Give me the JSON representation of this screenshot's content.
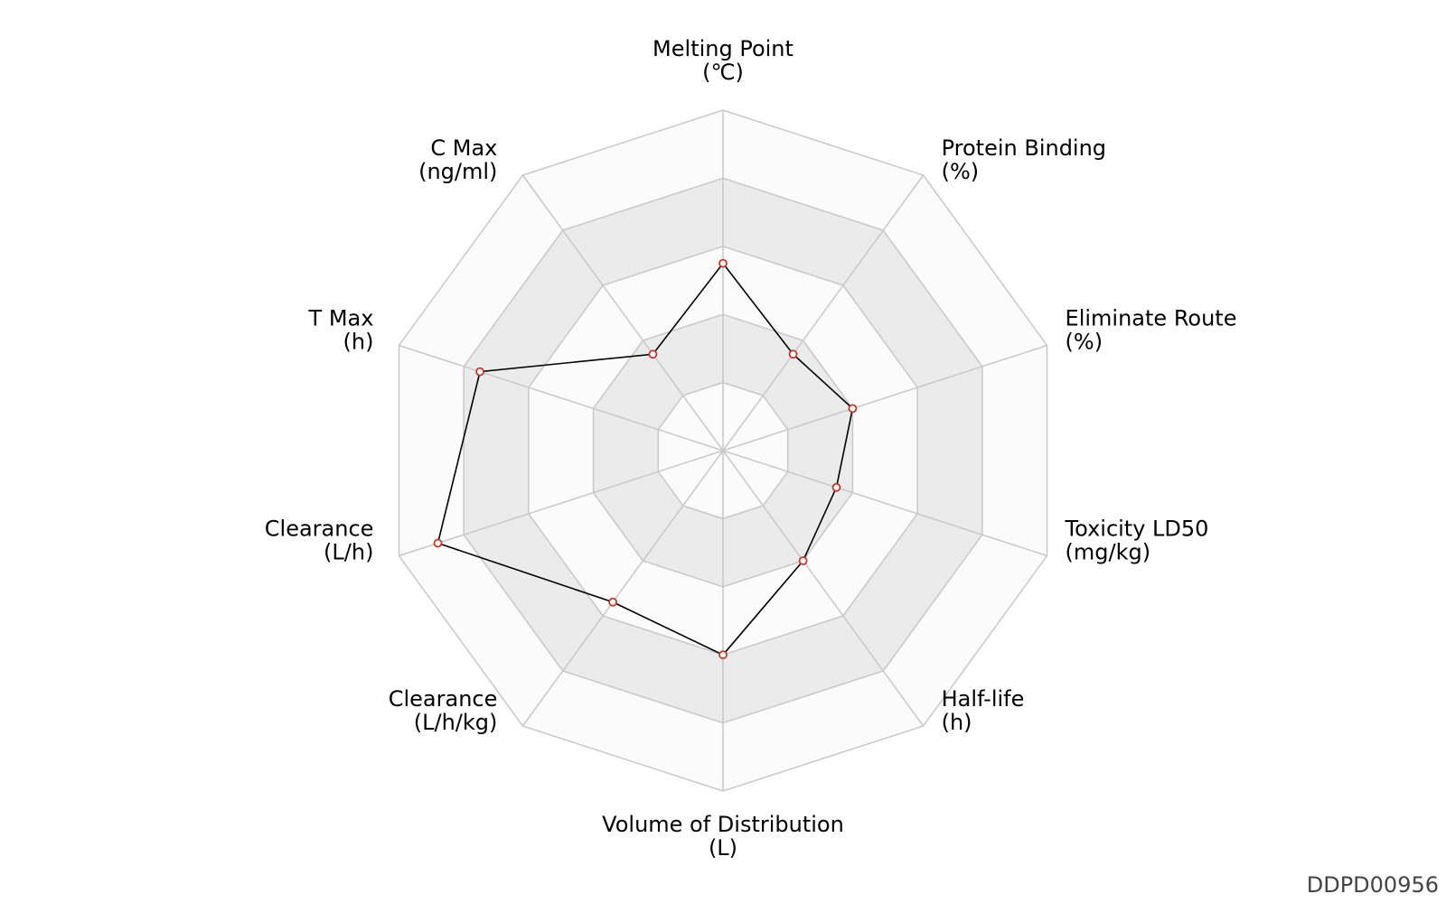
{
  "chart_data": {
    "type": "radar",
    "axes": [
      {
        "name": "Melting Point",
        "unit": "(℃)"
      },
      {
        "name": "Protein Binding",
        "unit": "(%)"
      },
      {
        "name": "Eliminate Route",
        "unit": "(%)"
      },
      {
        "name": "Toxicity LD50",
        "unit": "(mg/kg)"
      },
      {
        "name": "Half-life",
        "unit": "(h)"
      },
      {
        "name": "Volume of Distribution",
        "unit": "(L)"
      },
      {
        "name": "Clearance",
        "unit": "(L/h/kg)"
      },
      {
        "name": "Clearance",
        "unit": "(L/h)"
      },
      {
        "name": "T Max",
        "unit": "(h)"
      },
      {
        "name": "C Max",
        "unit": "(ng/ml)"
      }
    ],
    "levels": 5,
    "range": [
      0,
      1
    ],
    "values": [
      0.55,
      0.35,
      0.4,
      0.35,
      0.4,
      0.6,
      0.55,
      0.88,
      0.75,
      0.35
    ],
    "grid": true,
    "colors": {
      "line": "#000000",
      "marker_stroke": "#c0392b",
      "marker_fill": "#ffffff",
      "band_shaded": "#ebebeb",
      "band_light": "#fbfbfb",
      "grid_line": "#c8c8c8"
    }
  },
  "footer": {
    "id_label": "DDPD00956"
  }
}
